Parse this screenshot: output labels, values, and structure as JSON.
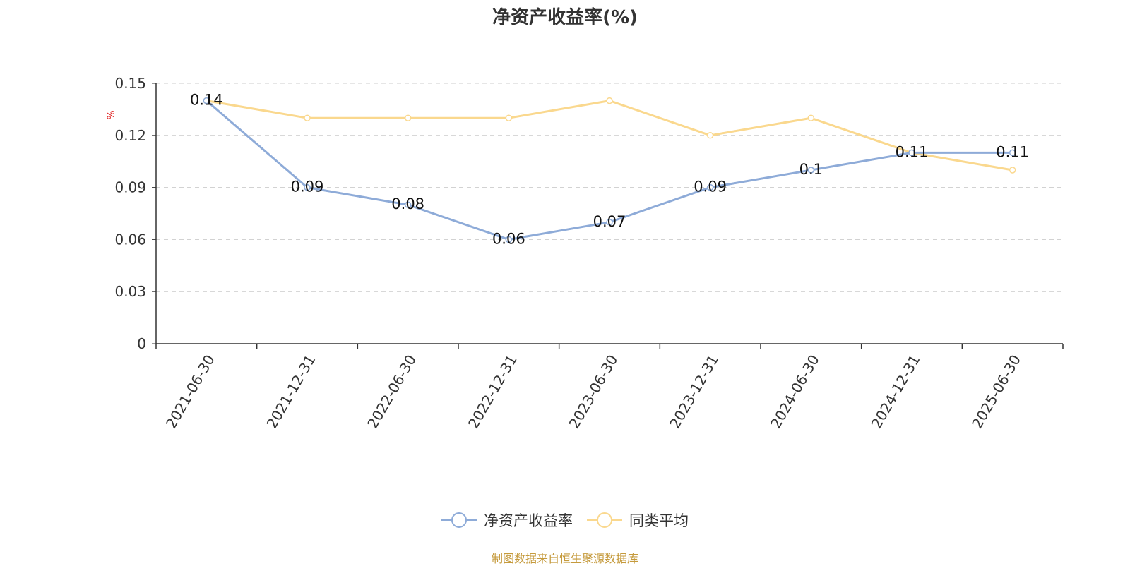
{
  "chart_data": {
    "type": "line",
    "title": "净资产收益率(%)",
    "ylabel": "%",
    "categories": [
      "2021-06-30",
      "2021-12-31",
      "2022-06-30",
      "2022-12-31",
      "2023-06-30",
      "2023-12-31",
      "2024-06-30",
      "2024-12-31",
      "2025-06-30"
    ],
    "ylim": [
      0,
      0.15
    ],
    "yticks": [
      "0",
      "0.03",
      "0.06",
      "0.09",
      "0.12",
      "0.15"
    ],
    "grid": true,
    "legend_position": "bottom",
    "series": [
      {
        "name": "净资产收益率",
        "color": "#8eabd8",
        "values": [
          0.14,
          0.09,
          0.08,
          0.06,
          0.07,
          0.09,
          0.1,
          0.11,
          0.11
        ],
        "labels": [
          "0.14",
          "0.09",
          "0.08",
          "0.06",
          "0.07",
          "0.09",
          "0.1",
          "0.11",
          "0.11"
        ]
      },
      {
        "name": "同类平均",
        "color": "#fad88e",
        "values": [
          0.14,
          0.13,
          0.13,
          0.13,
          0.14,
          0.12,
          0.13,
          0.11,
          0.1
        ]
      }
    ]
  },
  "legend": {
    "item1": "净资产收益率",
    "item2": "同类平均"
  },
  "source": "制图数据来自恒生聚源数据库",
  "colors": {
    "ylabel": "#e02020",
    "source": "#c59a3c"
  }
}
